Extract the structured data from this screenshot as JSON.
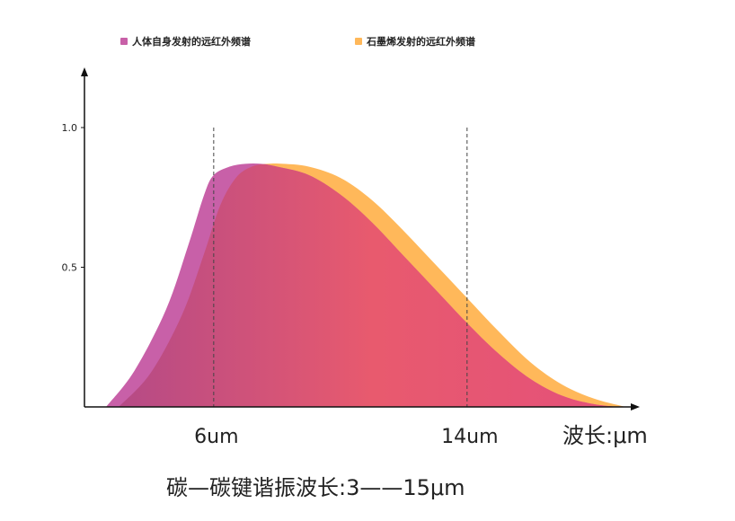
{
  "chart_data": {
    "type": "area",
    "title": "",
    "xlabel": "波长:μm",
    "ylabel": "",
    "caption": "碳—碳键谐振波长:3——15μm",
    "xlim": [
      2,
      20
    ],
    "ylim": [
      0,
      1.2
    ],
    "yticks": [
      {
        "value": 0.5,
        "label": "0.5"
      },
      {
        "value": 1.0,
        "label": "1.0"
      }
    ],
    "markers": [
      {
        "x": 6,
        "label": "6um"
      },
      {
        "x": 14,
        "label": "14um"
      }
    ],
    "legend_position": "top",
    "grid": false,
    "series": [
      {
        "name": "人体自身发射的远红外频谱",
        "color": "#c860a8",
        "x": [
          2.6,
          3.5,
          4.5,
          5.2,
          5.7,
          6.0,
          6.5,
          7.0,
          7.5,
          8.0,
          9.0,
          10.0,
          11.0,
          12.0,
          13.0,
          14.0,
          15.0,
          16.0,
          17.0,
          18.0,
          18.8
        ],
        "y": [
          0.0,
          0.13,
          0.35,
          0.58,
          0.76,
          0.83,
          0.86,
          0.87,
          0.87,
          0.86,
          0.83,
          0.76,
          0.66,
          0.54,
          0.42,
          0.3,
          0.19,
          0.1,
          0.04,
          0.01,
          0.0
        ]
      },
      {
        "name": "石墨烯发射的远红外频谱",
        "color": "#ffb85a",
        "x": [
          3.0,
          4.0,
          5.0,
          5.7,
          6.2,
          6.7,
          7.2,
          7.7,
          8.2,
          9.0,
          10.0,
          11.0,
          12.0,
          13.0,
          14.0,
          15.0,
          16.0,
          17.0,
          18.0,
          19.0
        ],
        "y": [
          0.0,
          0.12,
          0.33,
          0.55,
          0.72,
          0.82,
          0.86,
          0.87,
          0.87,
          0.86,
          0.82,
          0.74,
          0.63,
          0.51,
          0.39,
          0.27,
          0.16,
          0.08,
          0.03,
          0.0
        ]
      }
    ]
  }
}
